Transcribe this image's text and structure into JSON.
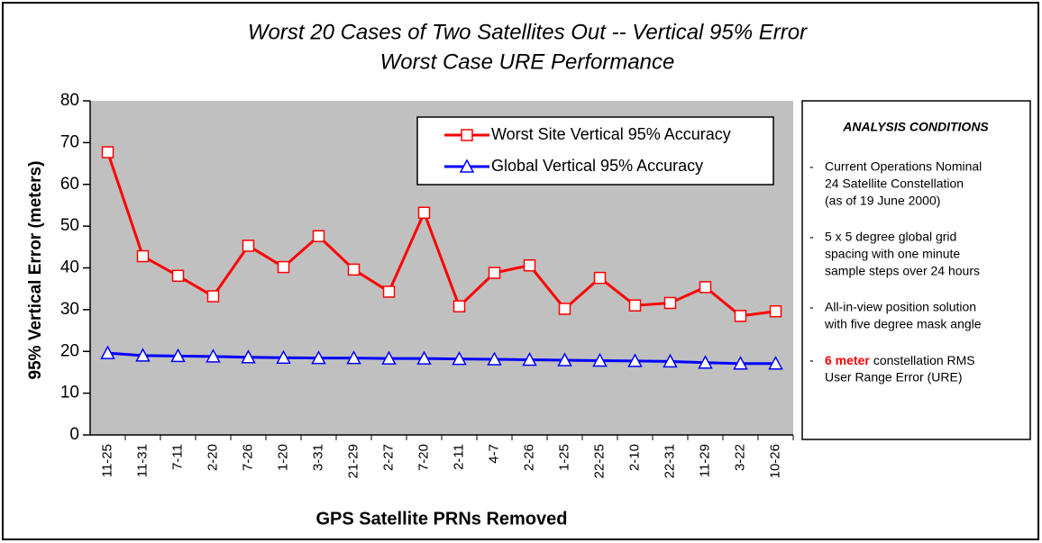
{
  "chart_data": {
    "type": "line",
    "title": "Worst 20 Cases of Two Satellites Out -- Vertical 95% Error",
    "subtitle": "Worst Case URE Performance",
    "xlabel": "GPS Satellite PRNs Removed",
    "ylabel": "95% Vertical Error (meters)",
    "categories": [
      "11-25",
      "11-31",
      "7-11",
      "2-20",
      "7-26",
      "1-20",
      "3-31",
      "21-29",
      "2-27",
      "7-20",
      "2-11",
      "4-7",
      "2-26",
      "1-25",
      "22-25",
      "2-10",
      "22-31",
      "11-29",
      "3-22",
      "10-26"
    ],
    "series": [
      {
        "name": "Worst Site Vertical 95% Accuracy",
        "color": "#ff0000",
        "marker": "square",
        "values": [
          67.7,
          42.8,
          38.1,
          33.2,
          45.3,
          40.2,
          47.6,
          39.6,
          34.3,
          53.2,
          30.8,
          38.8,
          40.6,
          30.2,
          37.6,
          31.0,
          31.6,
          35.4,
          28.5,
          29.6
        ]
      },
      {
        "name": "Global Vertical 95% Accuracy",
        "color": "#0000ff",
        "marker": "triangle",
        "values": [
          19.6,
          19.0,
          18.9,
          18.8,
          18.6,
          18.5,
          18.4,
          18.4,
          18.3,
          18.3,
          18.2,
          18.1,
          18.0,
          17.9,
          17.8,
          17.7,
          17.6,
          17.3,
          17.1,
          17.1
        ]
      }
    ],
    "ylim": [
      0,
      80
    ],
    "yticks": [
      0,
      10,
      20,
      30,
      40,
      50,
      60,
      70,
      80
    ],
    "plot_background": "#c0c0c0",
    "legend": "top-right"
  },
  "conditions": {
    "title": "ANALYSIS CONDITIONS",
    "items": [
      {
        "lines": [
          "Current Operations Nominal",
          "24 Satellite Constellation",
          "(as of 19 June 2000)"
        ]
      },
      {
        "lines": [
          "5 x 5 degree global grid",
          "spacing with one minute",
          "sample steps over 24 hours"
        ]
      },
      {
        "lines": [
          "All-in-view position solution",
          "with five degree mask angle"
        ]
      },
      {
        "highlight": "6 meter",
        "lines": [
          "constellation RMS",
          "User Range Error (URE)"
        ]
      }
    ]
  }
}
